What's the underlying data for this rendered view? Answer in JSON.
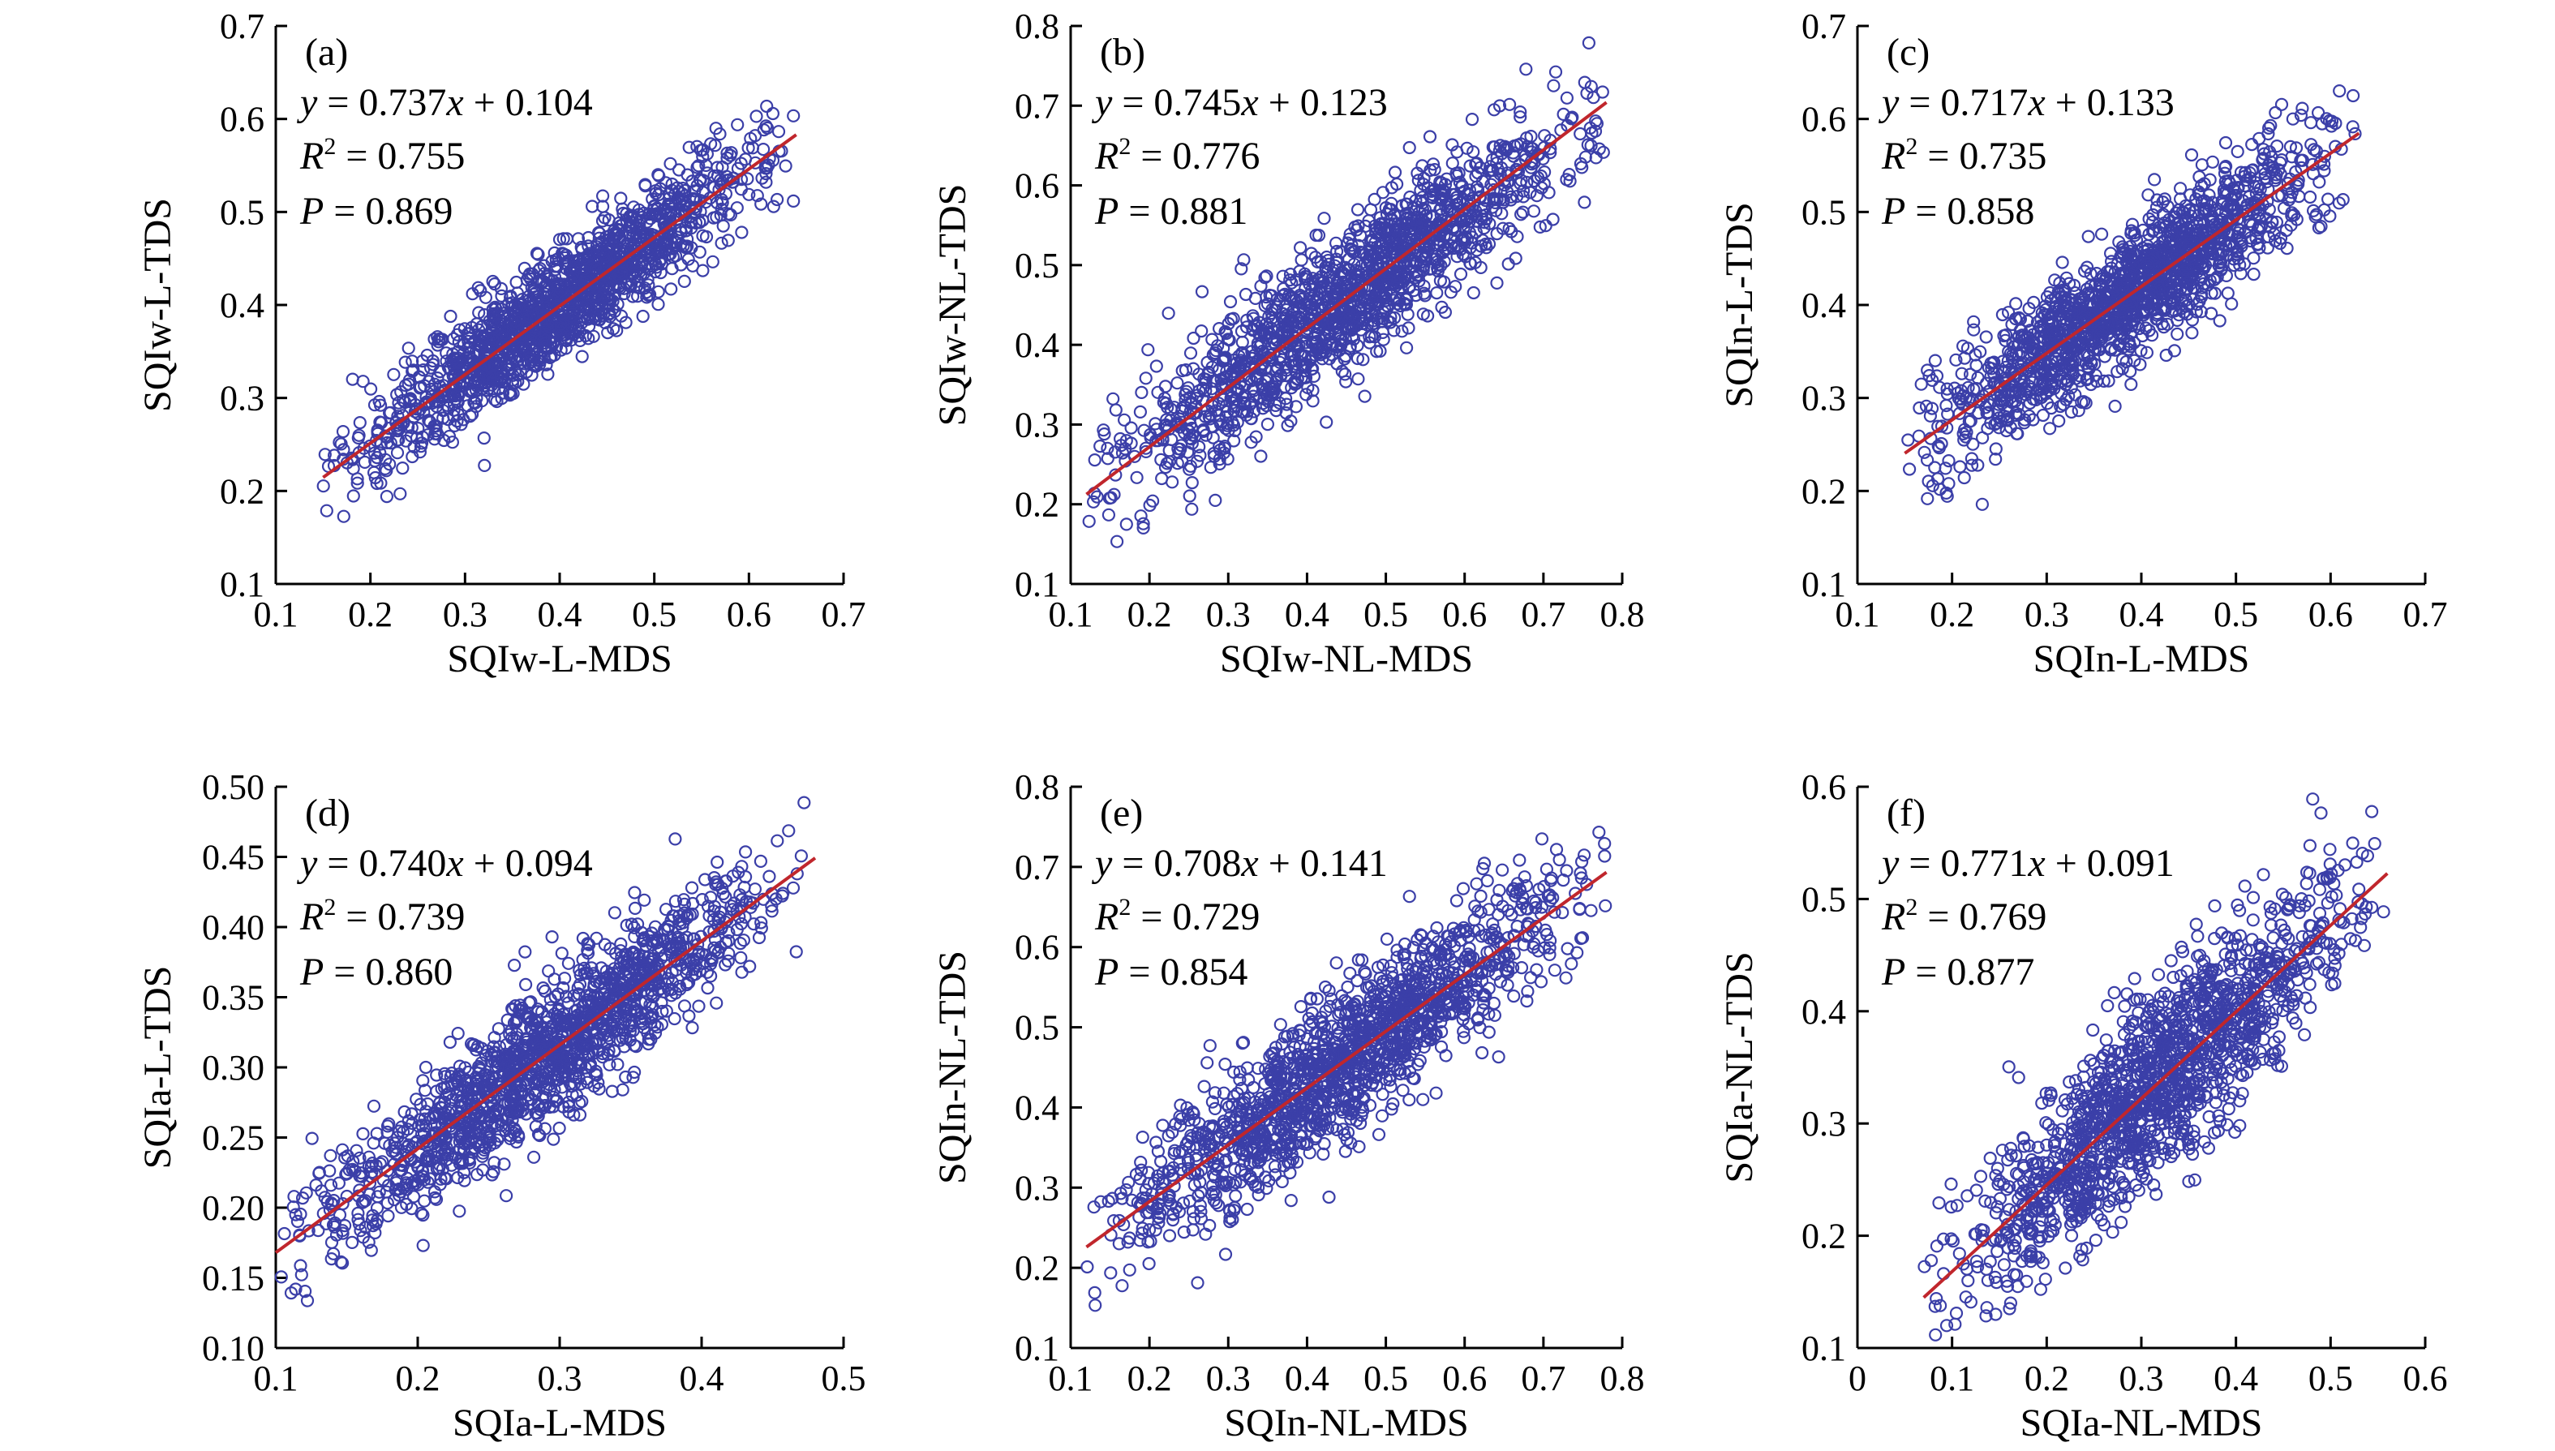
{
  "colors": {
    "points": "#3b3fa8",
    "fit_line": "#c0262c",
    "axis": "#000000"
  },
  "chart_data": [
    {
      "type": "scatter",
      "panel_label": "(a)",
      "xlabel": "SQIw-L-MDS",
      "ylabel": "SQIw-L-TDS",
      "xlim": [
        0.1,
        0.7
      ],
      "ylim": [
        0.1,
        0.7
      ],
      "xticks": [
        0.1,
        0.2,
        0.3,
        0.4,
        0.5,
        0.6,
        0.7
      ],
      "yticks": [
        0.1,
        0.2,
        0.3,
        0.4,
        0.5,
        0.6,
        0.7
      ],
      "xtick_labels": [
        "0.1",
        "0.2",
        "0.3",
        "0.4",
        "0.5",
        "0.6",
        "0.7"
      ],
      "ytick_labels": [
        "0.1",
        "0.2",
        "0.3",
        "0.4",
        "0.5",
        "0.6",
        "0.7"
      ],
      "fit": {
        "slope": 0.737,
        "intercept": 0.104,
        "x_range": [
          0.15,
          0.65
        ]
      },
      "scatter_spread": 0.03,
      "annotations": {
        "eq_pre": "y",
        "eq_mid": " = 0.737",
        "eq_var": "x",
        "eq_post": " + 0.104",
        "r2_sym": "R",
        "r2_exp": "2",
        "r2_val": " = 0.755",
        "p_sym": "P",
        "p_val": " = 0.869"
      }
    },
    {
      "type": "scatter",
      "panel_label": "(b)",
      "xlabel": "SQIw-NL-MDS",
      "ylabel": "SQIw-NL-TDS",
      "xlim": [
        0.1,
        0.8
      ],
      "ylim": [
        0.1,
        0.8
      ],
      "xticks": [
        0.1,
        0.2,
        0.3,
        0.4,
        0.5,
        0.6,
        0.7,
        0.8
      ],
      "yticks": [
        0.1,
        0.2,
        0.3,
        0.4,
        0.5,
        0.6,
        0.7,
        0.8
      ],
      "xtick_labels": [
        "0.1",
        "0.2",
        "0.3",
        "0.4",
        "0.5",
        "0.6",
        "0.7",
        "0.8"
      ],
      "ytick_labels": [
        "0.1",
        "0.2",
        "0.3",
        "0.4",
        "0.5",
        "0.6",
        "0.7",
        "0.8"
      ],
      "fit": {
        "slope": 0.745,
        "intercept": 0.123,
        "x_range": [
          0.12,
          0.78
        ]
      },
      "scatter_spread": 0.045,
      "annotations": {
        "eq_pre": "y",
        "eq_mid": " = 0.745",
        "eq_var": "x",
        "eq_post": " + 0.123",
        "r2_sym": "R",
        "r2_exp": "2",
        "r2_val": " = 0.776",
        "p_sym": "P",
        "p_val": " = 0.881"
      }
    },
    {
      "type": "scatter",
      "panel_label": "(c)",
      "xlabel": "SQIn-L-MDS",
      "ylabel": "SQIn-L-TDS",
      "xlim": [
        0.1,
        0.7
      ],
      "ylim": [
        0.1,
        0.7
      ],
      "xticks": [
        0.1,
        0.2,
        0.3,
        0.4,
        0.5,
        0.6,
        0.7
      ],
      "yticks": [
        0.1,
        0.2,
        0.3,
        0.4,
        0.5,
        0.6,
        0.7
      ],
      "xtick_labels": [
        "0.1",
        "0.2",
        "0.3",
        "0.4",
        "0.5",
        "0.6",
        "0.7"
      ],
      "ytick_labels": [
        "0.1",
        "0.2",
        "0.3",
        "0.4",
        "0.5",
        "0.6",
        "0.7"
      ],
      "fit": {
        "slope": 0.717,
        "intercept": 0.133,
        "x_range": [
          0.15,
          0.63
        ]
      },
      "scatter_spread": 0.035,
      "annotations": {
        "eq_pre": "y",
        "eq_mid": " = 0.717",
        "eq_var": "x",
        "eq_post": " + 0.133",
        "r2_sym": "R",
        "r2_exp": "2",
        "r2_val": " = 0.735",
        "p_sym": "P",
        "p_val": " = 0.858"
      }
    },
    {
      "type": "scatter",
      "panel_label": "(d)",
      "xlabel": "SQIa-L-MDS",
      "ylabel": "SQIa-L-TDS",
      "xlim": [
        0.1,
        0.5
      ],
      "ylim": [
        0.1,
        0.5
      ],
      "xticks": [
        0.1,
        0.2,
        0.3,
        0.4,
        0.5
      ],
      "yticks": [
        0.1,
        0.15,
        0.2,
        0.25,
        0.3,
        0.35,
        0.4,
        0.45,
        0.5
      ],
      "xtick_labels": [
        "0.1",
        "0.2",
        "0.3",
        "0.4",
        "0.5"
      ],
      "ytick_labels": [
        "0.10",
        "0.15",
        "0.20",
        "0.25",
        "0.30",
        "0.35",
        "0.40",
        "0.45",
        "0.50"
      ],
      "fit": {
        "slope": 0.74,
        "intercept": 0.094,
        "x_range": [
          0.1,
          0.48
        ]
      },
      "scatter_spread": 0.025,
      "annotations": {
        "eq_pre": "y",
        "eq_mid": " = 0.740",
        "eq_var": "x",
        "eq_post": " + 0.094",
        "r2_sym": "R",
        "r2_exp": "2",
        "r2_val": " = 0.739",
        "p_sym": "P",
        "p_val": " = 0.860"
      }
    },
    {
      "type": "scatter",
      "panel_label": "(e)",
      "xlabel": "SQIn-NL-MDS",
      "ylabel": "SQIn-NL-TDS",
      "xlim": [
        0.1,
        0.8
      ],
      "ylim": [
        0.1,
        0.8
      ],
      "xticks": [
        0.1,
        0.2,
        0.3,
        0.4,
        0.5,
        0.6,
        0.7,
        0.8
      ],
      "yticks": [
        0.1,
        0.2,
        0.3,
        0.4,
        0.5,
        0.6,
        0.7,
        0.8
      ],
      "xtick_labels": [
        "0.1",
        "0.2",
        "0.3",
        "0.4",
        "0.5",
        "0.6",
        "0.7",
        "0.8"
      ],
      "ytick_labels": [
        "0.1",
        "0.2",
        "0.3",
        "0.4",
        "0.5",
        "0.6",
        "0.7",
        "0.8"
      ],
      "fit": {
        "slope": 0.708,
        "intercept": 0.141,
        "x_range": [
          0.12,
          0.78
        ]
      },
      "scatter_spread": 0.045,
      "annotations": {
        "eq_pre": "y",
        "eq_mid": " = 0.708",
        "eq_var": "x",
        "eq_post": " + 0.141",
        "r2_sym": "R",
        "r2_exp": "2",
        "r2_val": " = 0.729",
        "p_sym": "P",
        "p_val": " = 0.854"
      }
    },
    {
      "type": "scatter",
      "panel_label": "(f)",
      "xlabel": "SQIa-NL-MDS",
      "ylabel": "SQIa-NL-TDS",
      "xlim": [
        0,
        0.6
      ],
      "ylim": [
        0.1,
        0.6
      ],
      "xticks": [
        0,
        0.1,
        0.2,
        0.3,
        0.4,
        0.5,
        0.6
      ],
      "yticks": [
        0.1,
        0.2,
        0.3,
        0.4,
        0.5,
        0.6
      ],
      "xtick_labels": [
        "0",
        "0.1",
        "0.2",
        "0.3",
        "0.4",
        "0.5",
        "0.6"
      ],
      "ytick_labels": [
        "0.1",
        "0.2",
        "0.3",
        "0.4",
        "0.5",
        "0.6"
      ],
      "fit": {
        "slope": 0.771,
        "intercept": 0.091,
        "x_range": [
          0.07,
          0.56
        ]
      },
      "scatter_spread": 0.04,
      "annotations": {
        "eq_pre": "y",
        "eq_mid": " = 0.771",
        "eq_var": "x",
        "eq_post": " + 0.091",
        "r2_sym": "R",
        "r2_exp": "2",
        "r2_val": " = 0.769",
        "p_sym": "P",
        "p_val": " = 0.877"
      }
    }
  ]
}
